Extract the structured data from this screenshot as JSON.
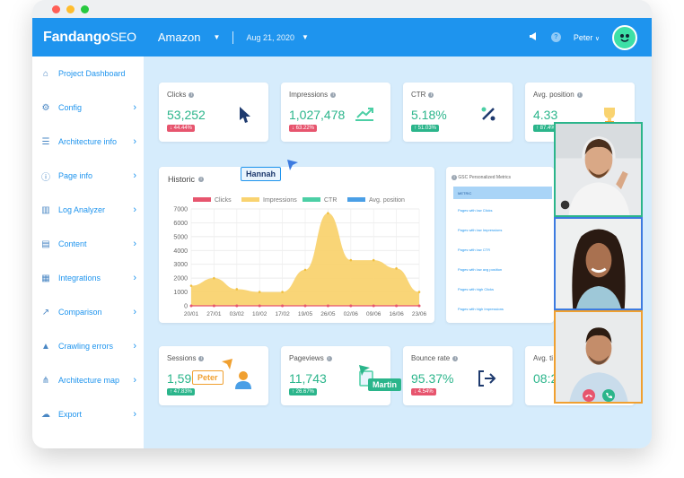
{
  "brand": {
    "name": "Fandango",
    "suffix": "SEO"
  },
  "header": {
    "project": "Amazon",
    "date": "Aug 21, 2020",
    "user": "Peter"
  },
  "sidebar": {
    "items": [
      {
        "label": "Project Dashboard",
        "icon": "home-icon",
        "chevron": false
      },
      {
        "label": "Config",
        "icon": "gear-icon",
        "chevron": true
      },
      {
        "label": "Architecture info",
        "icon": "list-icon",
        "chevron": true
      },
      {
        "label": "Page info",
        "icon": "info-icon",
        "chevron": true
      },
      {
        "label": "Log Analyzer",
        "icon": "bar-chart-icon",
        "chevron": true
      },
      {
        "label": "Content",
        "icon": "document-icon",
        "chevron": true
      },
      {
        "label": "Integrations",
        "icon": "grid-icon",
        "chevron": true
      },
      {
        "label": "Comparison",
        "icon": "line-chart-icon",
        "chevron": true
      },
      {
        "label": "Crawling errors",
        "icon": "warning-icon",
        "chevron": true
      },
      {
        "label": "Architecture map",
        "icon": "sitemap-icon",
        "chevron": true
      },
      {
        "label": "Export",
        "icon": "cloud-download-icon",
        "chevron": true
      }
    ]
  },
  "metrics_top": [
    {
      "title": "Clicks",
      "value": "53,252",
      "change": "44.44%",
      "trend": "down",
      "icon": "cursor-icon"
    },
    {
      "title": "Impressions",
      "value": "1,027,478",
      "change": "63.22%",
      "trend": "down",
      "icon": "trend-up-icon"
    },
    {
      "title": "CTR",
      "value": "5.18%",
      "change": "51.03%",
      "trend": "up",
      "icon": "percent-icon"
    },
    {
      "title": "Avg. position",
      "value": "4.33",
      "change": "87.4%",
      "trend": "up",
      "icon": "trophy-icon"
    }
  ],
  "metrics_bottom": [
    {
      "title": "Sessions",
      "value": "1,591",
      "change": "47.83%",
      "trend": "up",
      "icon": "user-icon"
    },
    {
      "title": "Pageviews",
      "value": "11,743",
      "change": "26.67%",
      "trend": "up",
      "icon": "page-icon"
    },
    {
      "title": "Bounce rate",
      "value": "95.37%",
      "change": "4.54%",
      "trend": "down",
      "icon": "exit-icon"
    },
    {
      "title": "Avg. ti",
      "value": "08:2",
      "change": "",
      "trend": "up",
      "icon": ""
    }
  ],
  "historic": {
    "title": "Historic"
  },
  "chart_data": {
    "type": "area",
    "title": "Historic",
    "legend": [
      "Clicks",
      "Impressions",
      "CTR",
      "Avg. position"
    ],
    "legend_colors": [
      "#e7556e",
      "#f9d370",
      "#4ccfa5",
      "#4a9fe6"
    ],
    "categories": [
      "20/01",
      "27/01",
      "03/02",
      "10/02",
      "17/02",
      "19/05",
      "26/05",
      "02/06",
      "09/06",
      "16/06",
      "23/06"
    ],
    "series": [
      {
        "name": "Impressions",
        "values": [
          1450,
          2000,
          1200,
          1000,
          1000,
          2600,
          6700,
          3300,
          3300,
          2700,
          1000
        ]
      },
      {
        "name": "Clicks",
        "values": [
          0,
          0,
          0,
          0,
          0,
          0,
          0,
          0,
          0,
          0,
          0
        ]
      }
    ],
    "ylim": [
      0,
      7000
    ],
    "yticks": [
      "0",
      "1000",
      "2000",
      "3000",
      "4000",
      "5000",
      "6000",
      "7000"
    ],
    "grid": true,
    "legend_position": "top"
  },
  "gsc": {
    "title": "GSC Personalized Metrics",
    "header": "METRIC",
    "rows": [
      "Pages with low Clicks",
      "Pages with low Impressions",
      "Pages with low CTR",
      "Pages with low avg position",
      "Pages with high Clicks",
      "Pages with high Impressions"
    ]
  },
  "tags": {
    "hannah": "Hannah",
    "peter": "Peter",
    "martin": "Martin"
  },
  "colors": {
    "primary": "#1e94ee",
    "accent_green": "#2bb58b",
    "negative": "#e7556e"
  }
}
